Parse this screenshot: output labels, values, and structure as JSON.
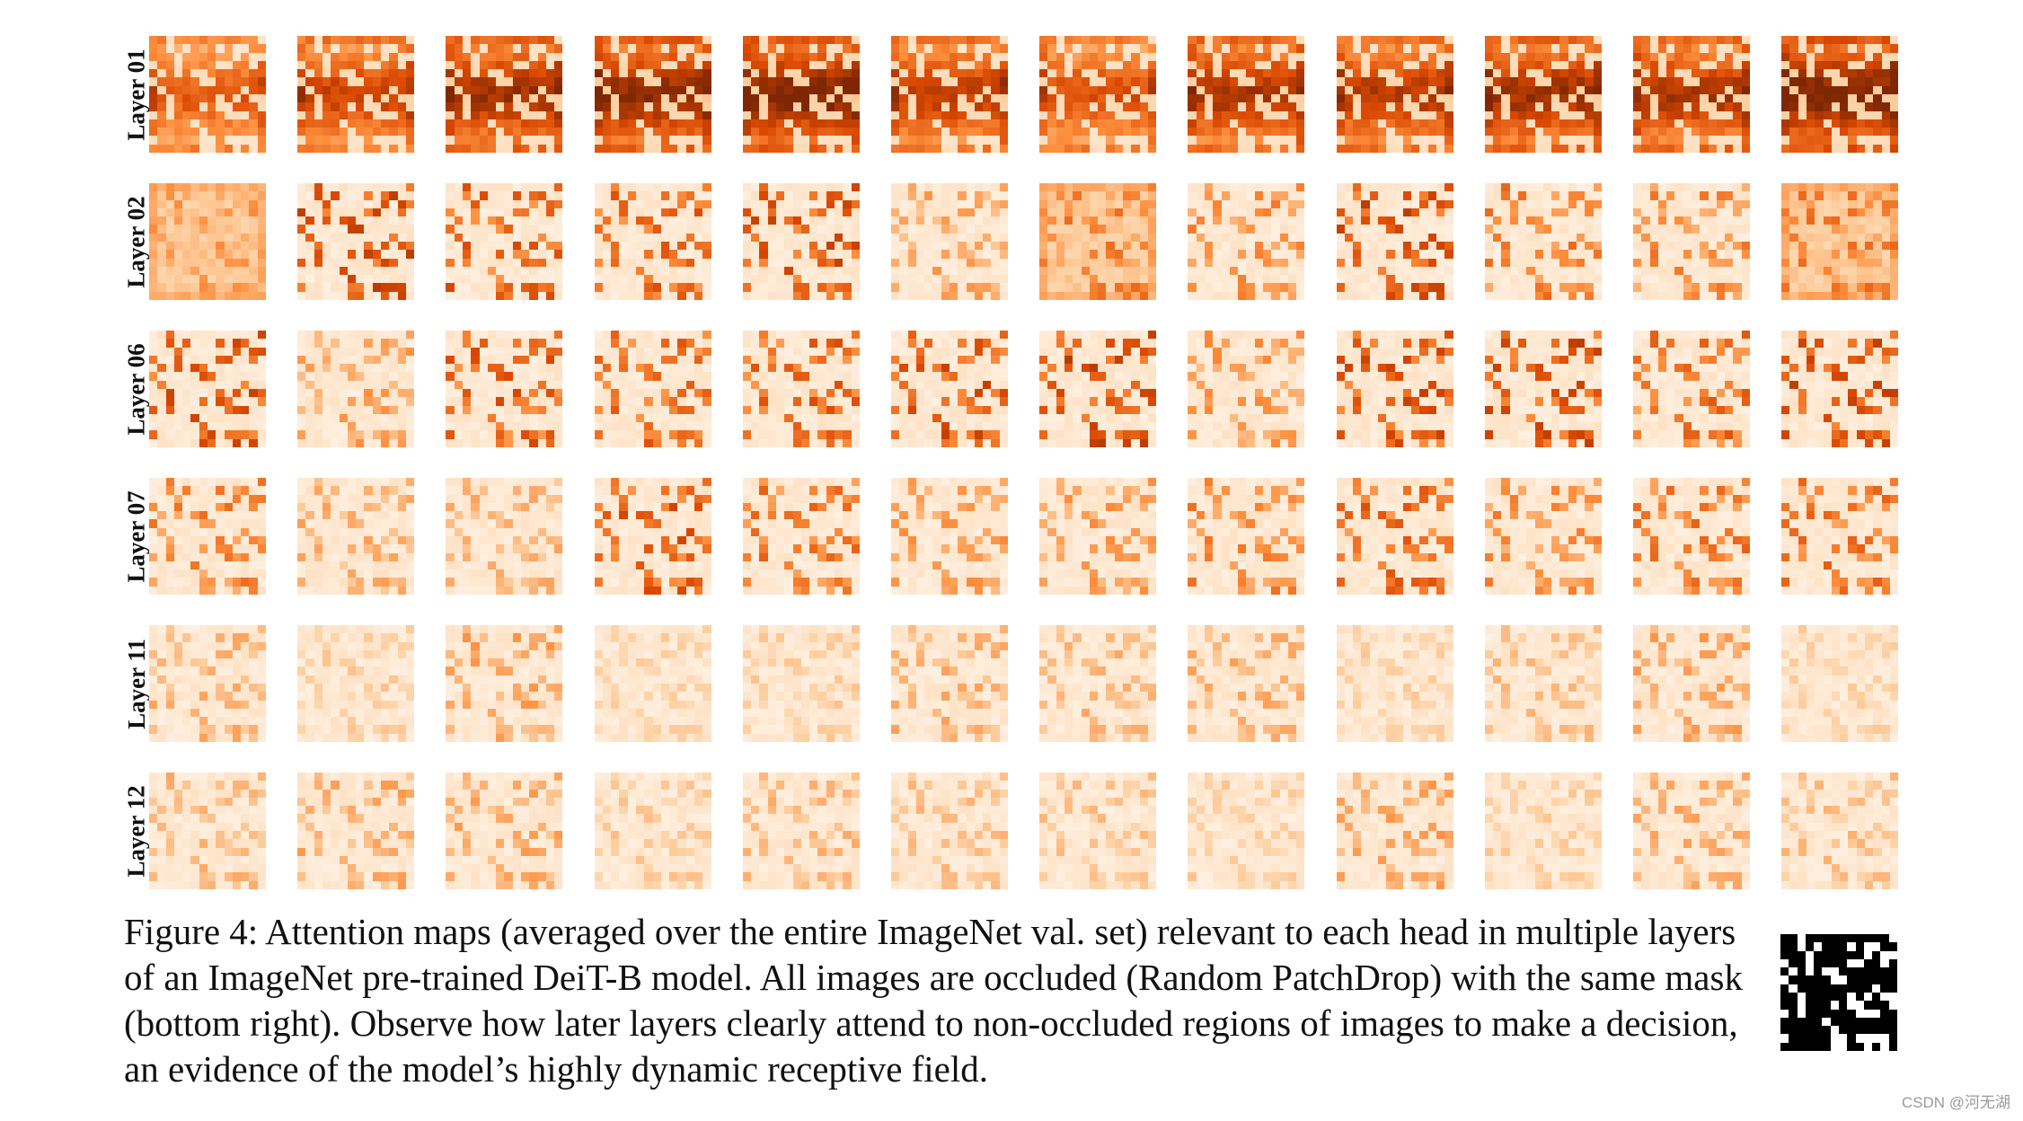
{
  "figure": {
    "row_labels": [
      "Layer 01",
      "Layer 02",
      "Layer 06",
      "Layer 07",
      "Layer 11",
      "Layer 12"
    ],
    "heads_per_row": 12,
    "grid_size": 14,
    "colormap": [
      "#fff5eb",
      "#fdd0a2",
      "#fd8d3c",
      "#d94801",
      "#7f2704"
    ],
    "row_intensity": [
      0.85,
      0.45,
      0.45,
      0.4,
      0.25,
      0.25
    ],
    "mask_colors": {
      "visible": "#ffffff",
      "dropped": "#000000"
    }
  },
  "caption": {
    "text": "Figure 4: Attention maps (averaged over the entire ImageNet val. set) relevant to each head in multiple layers of an ImageNet pre-trained DeiT-B model. All images are occluded (Random PatchDrop) with the same mask (bottom right). Observe how later layers clearly attend to non-occluded regions of images to make a decision, an evidence of the model’s highly dynamic receptive field."
  },
  "watermark": "CSDN @河无湖"
}
